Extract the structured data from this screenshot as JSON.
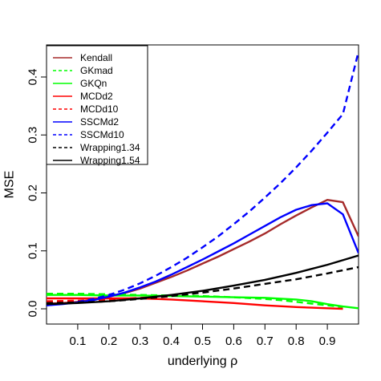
{
  "chart_data": {
    "type": "line",
    "title": "",
    "xlabel": "underlying ρ",
    "ylabel": "MSE",
    "xlim": [
      0,
      1
    ],
    "ylim": [
      0,
      0.45
    ],
    "x_ticks": [
      0.1,
      0.2,
      0.3,
      0.4,
      0.5,
      0.6,
      0.7,
      0.8,
      0.9
    ],
    "x_tick_labels": [
      "0.1",
      "0.2",
      "0.3",
      "0.4",
      "0.5",
      "0.6",
      "0.7",
      "0.8",
      "0.9"
    ],
    "y_ticks": [
      0.0,
      0.1,
      0.2,
      0.3,
      0.4
    ],
    "y_tick_labels": [
      "0.0",
      "0.1",
      "0.2",
      "0.3",
      "0.4"
    ],
    "legend_position": "top-left",
    "grid": false,
    "series": [
      {
        "name": "Kendall",
        "color": "#a52a2a",
        "dash": "solid",
        "x": [
          0.0,
          0.05,
          0.1,
          0.15,
          0.2,
          0.25,
          0.3,
          0.35,
          0.4,
          0.45,
          0.5,
          0.55,
          0.6,
          0.65,
          0.7,
          0.75,
          0.8,
          0.85,
          0.9,
          0.95,
          1.0
        ],
        "y": [
          0.009,
          0.01,
          0.012,
          0.016,
          0.021,
          0.027,
          0.035,
          0.045,
          0.055,
          0.066,
          0.078,
          0.09,
          0.103,
          0.116,
          0.13,
          0.146,
          0.161,
          0.175,
          0.188,
          0.184,
          0.125
        ]
      },
      {
        "name": "GKmad",
        "color": "#00ff00",
        "dash": "dashed",
        "x": [
          0.0,
          0.1,
          0.2,
          0.3,
          0.4,
          0.5,
          0.6,
          0.7,
          0.75,
          0.8,
          0.85,
          0.9,
          0.95
        ],
        "y": [
          0.026,
          0.026,
          0.025,
          0.024,
          0.023,
          0.022,
          0.02,
          0.017,
          0.015,
          0.012,
          0.009,
          0.006,
          0.003
        ]
      },
      {
        "name": "GKQn",
        "color": "#00ff00",
        "dash": "solid",
        "x": [
          0.0,
          0.1,
          0.2,
          0.3,
          0.4,
          0.5,
          0.6,
          0.7,
          0.8,
          0.85,
          0.9,
          0.95,
          1.0
        ],
        "y": [
          0.024,
          0.024,
          0.023,
          0.023,
          0.022,
          0.021,
          0.02,
          0.019,
          0.016,
          0.013,
          0.008,
          0.004,
          0.001
        ]
      },
      {
        "name": "MCDd2",
        "color": "#ff0000",
        "dash": "solid",
        "x": [
          0.0,
          0.1,
          0.2,
          0.3,
          0.35,
          0.4,
          0.5,
          0.6,
          0.7,
          0.8,
          0.85,
          0.9,
          0.95
        ],
        "y": [
          0.018,
          0.018,
          0.018,
          0.018,
          0.017,
          0.016,
          0.013,
          0.01,
          0.006,
          0.003,
          0.002,
          0.001,
          0.0
        ]
      },
      {
        "name": "MCDd10",
        "color": "#ff0000",
        "dash": "dashed",
        "x": [
          0.0,
          0.1,
          0.2,
          0.3,
          0.4
        ],
        "y": [
          0.013,
          0.014,
          0.016,
          0.019,
          0.021
        ]
      },
      {
        "name": "SSCMd2",
        "color": "#0000ff",
        "dash": "solid",
        "x": [
          0.0,
          0.05,
          0.1,
          0.15,
          0.2,
          0.25,
          0.3,
          0.35,
          0.4,
          0.45,
          0.5,
          0.55,
          0.6,
          0.65,
          0.7,
          0.75,
          0.8,
          0.85,
          0.9,
          0.95,
          1.0
        ],
        "y": [
          0.006,
          0.008,
          0.011,
          0.015,
          0.021,
          0.028,
          0.037,
          0.047,
          0.059,
          0.072,
          0.085,
          0.099,
          0.113,
          0.128,
          0.143,
          0.158,
          0.171,
          0.179,
          0.182,
          0.163,
          0.096
        ]
      },
      {
        "name": "SSCMd10",
        "color": "#0000ff",
        "dash": "dashed",
        "x": [
          0.0,
          0.05,
          0.1,
          0.15,
          0.2,
          0.25,
          0.3,
          0.35,
          0.4,
          0.45,
          0.5,
          0.55,
          0.6,
          0.65,
          0.7,
          0.75,
          0.8,
          0.85,
          0.9,
          0.95,
          1.0
        ],
        "y": [
          0.006,
          0.009,
          0.012,
          0.017,
          0.024,
          0.033,
          0.044,
          0.057,
          0.072,
          0.088,
          0.106,
          0.125,
          0.146,
          0.168,
          0.192,
          0.217,
          0.244,
          0.273,
          0.304,
          0.336,
          0.444
        ]
      },
      {
        "name": "Wrapping1.34",
        "color": "#000000",
        "dash": "dashed",
        "x": [
          0.0,
          0.1,
          0.2,
          0.3,
          0.4,
          0.5,
          0.6,
          0.7,
          0.8,
          0.9,
          1.0
        ],
        "y": [
          0.01,
          0.011,
          0.013,
          0.017,
          0.022,
          0.028,
          0.035,
          0.043,
          0.051,
          0.061,
          0.072
        ]
      },
      {
        "name": "Wrapping1.54",
        "color": "#000000",
        "dash": "solid",
        "x": [
          0.0,
          0.1,
          0.2,
          0.3,
          0.4,
          0.5,
          0.6,
          0.7,
          0.8,
          0.9,
          1.0
        ],
        "y": [
          0.008,
          0.01,
          0.013,
          0.018,
          0.024,
          0.031,
          0.04,
          0.05,
          0.062,
          0.076,
          0.092
        ]
      }
    ]
  }
}
